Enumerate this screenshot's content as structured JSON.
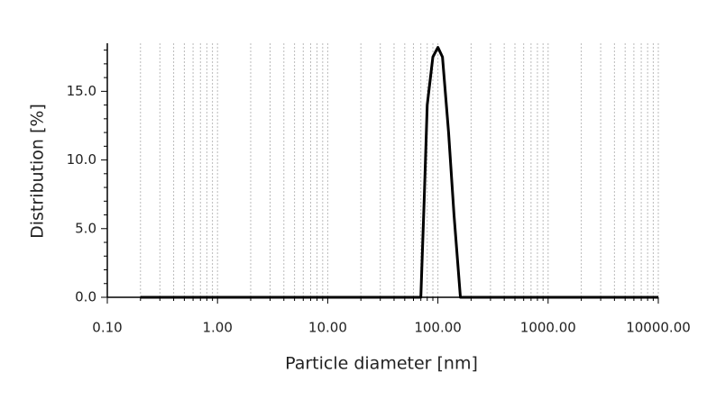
{
  "chart_data": {
    "type": "line",
    "xlabel": "Particle diameter [nm]",
    "ylabel": "Distribution [%]",
    "x": [
      0.2,
      70,
      75,
      80,
      90,
      100,
      110,
      125,
      140,
      160,
      10000
    ],
    "values": [
      0,
      0,
      7,
      14,
      17.5,
      18.2,
      17.5,
      12,
      6,
      0,
      0
    ],
    "color": "#000000",
    "xscale": "log",
    "xlim": [
      0.1,
      10000
    ],
    "ylim": [
      0,
      18.5
    ],
    "xticks": [
      {
        "value": 0.1,
        "label": "0.10"
      },
      {
        "value": 1,
        "label": "1.00"
      },
      {
        "value": 10,
        "label": "10.00"
      },
      {
        "value": 100,
        "label": "100.00"
      },
      {
        "value": 1000,
        "label": "1000.00"
      },
      {
        "value": 10000,
        "label": "10000.00"
      }
    ],
    "xminor": [
      0.2,
      0.3,
      0.4,
      0.5,
      0.6,
      0.7,
      0.8,
      0.9,
      2,
      3,
      4,
      5,
      6,
      7,
      8,
      9,
      20,
      30,
      40,
      50,
      60,
      70,
      80,
      90,
      200,
      300,
      400,
      500,
      600,
      700,
      800,
      900,
      2000,
      3000,
      4000,
      5000,
      6000,
      7000,
      8000,
      9000
    ],
    "yticks": [
      {
        "value": 0,
        "label": "0.0"
      },
      {
        "value": 5,
        "label": "5.0"
      },
      {
        "value": 10,
        "label": "10.0"
      },
      {
        "value": 15,
        "label": "15.0"
      }
    ],
    "yminor": [
      1,
      2,
      3,
      4,
      6,
      7,
      8,
      9,
      11,
      12,
      13,
      14,
      16,
      17,
      18
    ],
    "grid": true
  }
}
